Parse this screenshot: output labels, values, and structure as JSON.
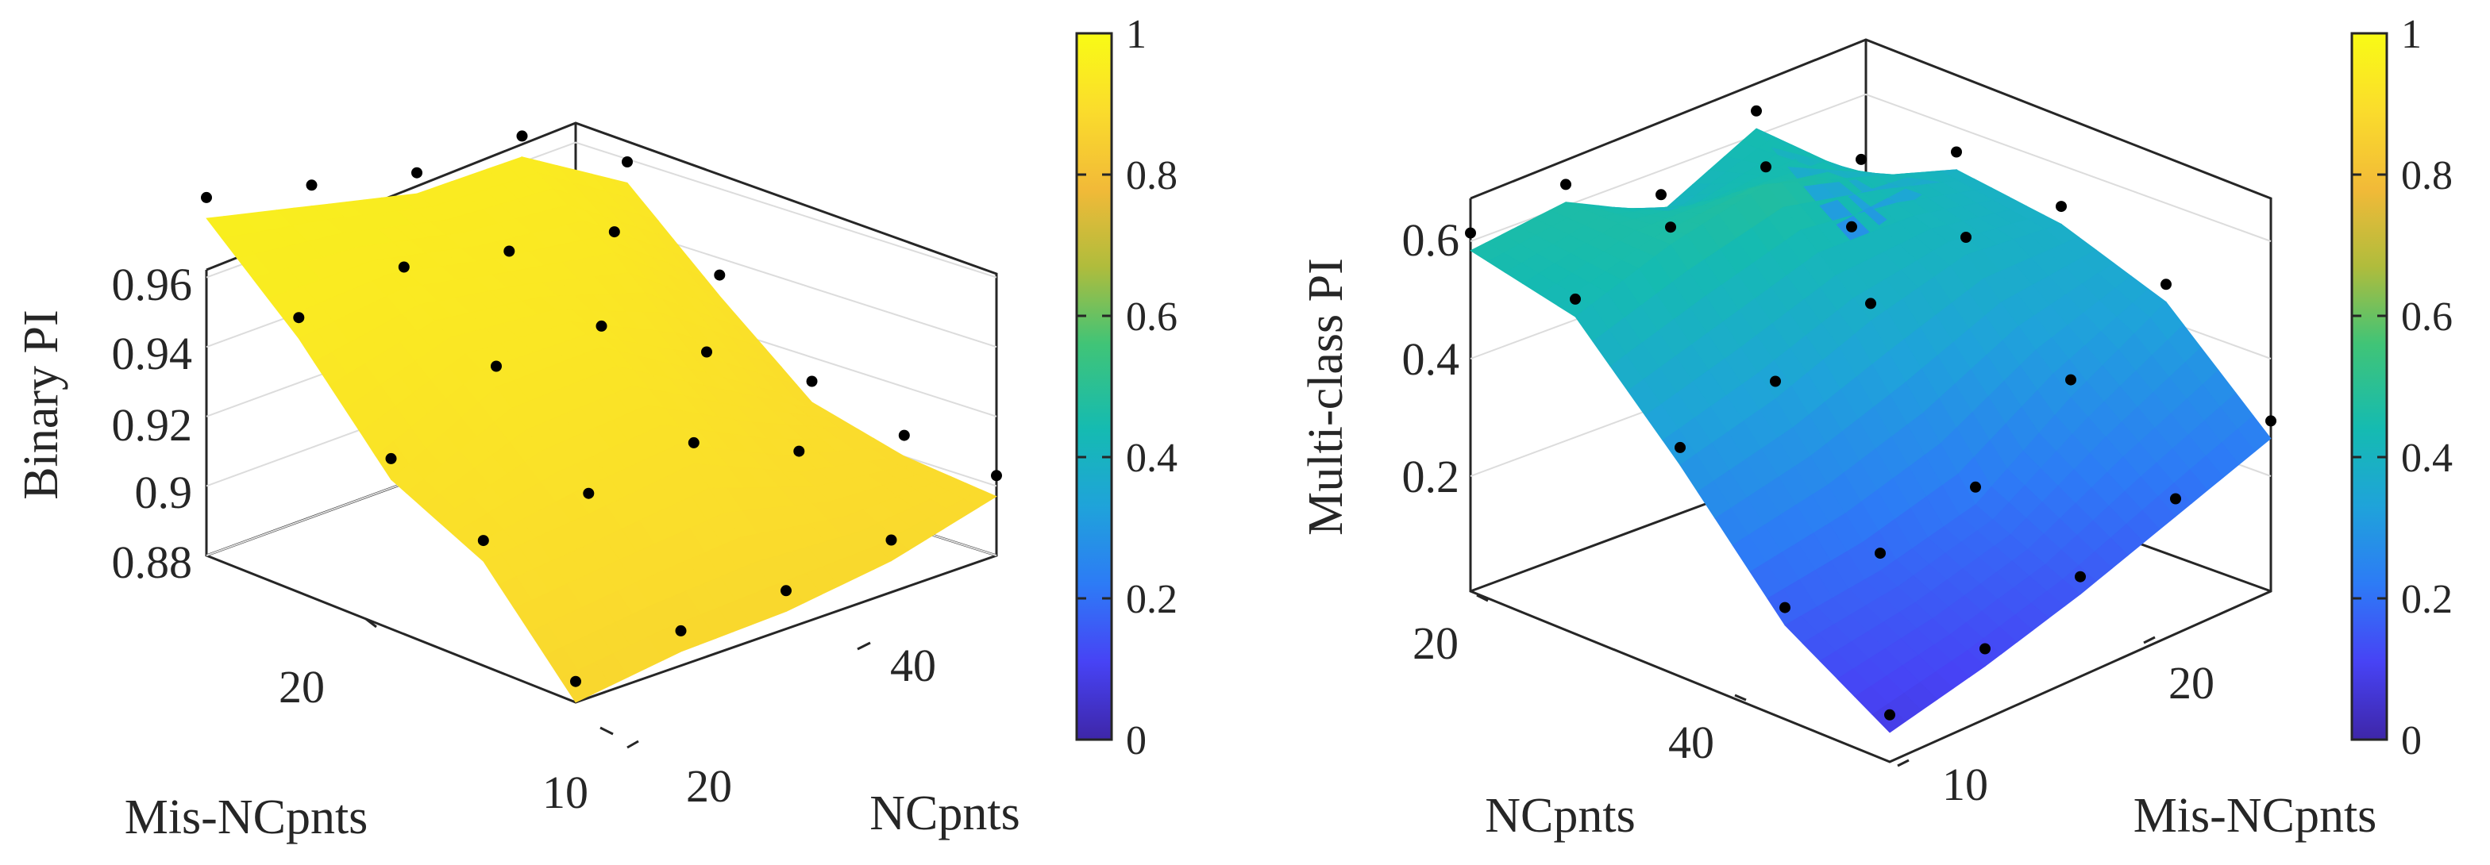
{
  "colormap": [
    "#3e26a8",
    "#4743f5",
    "#2d7bf6",
    "#1fa3da",
    "#15bbb1",
    "#40c477",
    "#b0bc3c",
    "#f2ba38",
    "#fadc2c",
    "#f9fb15"
  ],
  "chart_data": [
    {
      "type": "surface",
      "zlabel": "Binary PI",
      "xlabel": "Mis-NCpnts",
      "ylabel": "NCpnts",
      "x_ticks": [
        10,
        20
      ],
      "y_ticks": [
        20,
        40
      ],
      "z_ticks": [
        "0.88",
        "0.9",
        "0.92",
        "0.94",
        "0.96"
      ],
      "colorbar": {
        "min": 0,
        "max": 1,
        "ticks": [
          "0",
          "0.2",
          "0.4",
          "0.6",
          "0.8",
          "1"
        ]
      },
      "x_values": [
        5,
        10,
        15,
        20,
        25
      ],
      "y_values": [
        10,
        20,
        30,
        40,
        50
      ],
      "z_values": [
        [
          0.875,
          0.905,
          0.918,
          0.948,
          0.972
        ],
        [
          0.879,
          0.908,
          0.934,
          0.952,
          0.965
        ],
        [
          0.88,
          0.912,
          0.935,
          0.946,
          0.958
        ],
        [
          0.884,
          0.899,
          0.917,
          0.941,
          0.958
        ],
        [
          0.892,
          0.893,
          0.898,
          0.918,
          0.94
        ]
      ]
    },
    {
      "type": "surface",
      "zlabel": "Multi-class PI",
      "xlabel": "Mis-NCpnts",
      "ylabel": "NCpnts",
      "x_ticks": [
        10,
        20
      ],
      "y_ticks": [
        20,
        40
      ],
      "z_ticks": [
        "0.2",
        "0.4",
        "0.6"
      ],
      "colorbar": {
        "min": 0,
        "max": 1,
        "ticks": [
          "0",
          "0.2",
          "0.4",
          "0.6",
          "0.8",
          "1"
        ]
      },
      "x_values": [
        5,
        10,
        15,
        20,
        25
      ],
      "y_values": [
        10,
        20,
        30,
        40,
        50
      ],
      "z_values": [
        [
          0.05,
          0.09,
          0.14,
          0.2,
          0.26
        ],
        [
          0.16,
          0.18,
          0.22,
          0.33,
          0.42
        ],
        [
          0.36,
          0.4,
          0.46,
          0.5,
          0.48
        ],
        [
          0.54,
          0.59,
          0.62,
          0.56,
          0.5
        ],
        [
          0.58,
          0.59,
          0.5,
          0.57,
          0.3
        ]
      ]
    }
  ]
}
